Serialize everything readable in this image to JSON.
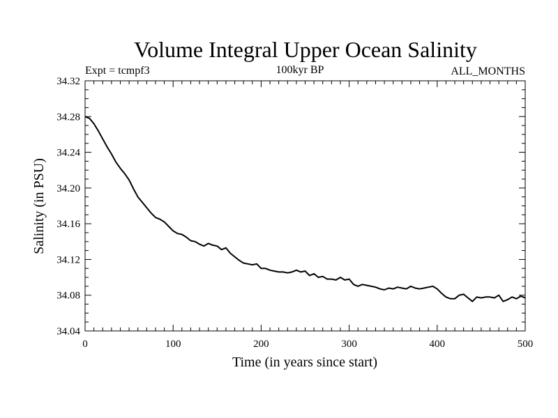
{
  "chart_data": {
    "type": "line",
    "title": "Volume Integral Upper Ocean Salinity",
    "subtitle_left": "Expt = tcmpf3",
    "subtitle_center": "100kyr BP",
    "subtitle_right": "ALL_MONTHS",
    "xlabel": "Time (in years since start)",
    "ylabel": "Salinity (in PSU)",
    "xlim": [
      0,
      500
    ],
    "ylim": [
      34.04,
      34.32
    ],
    "xticks": [
      0,
      100,
      200,
      300,
      400,
      500
    ],
    "xtick_labels": [
      "0",
      "100",
      "200",
      "300",
      "400",
      "500"
    ],
    "yticks": [
      34.04,
      34.08,
      34.12,
      34.16,
      34.2,
      34.24,
      34.28,
      34.32
    ],
    "ytick_labels": [
      "34.04",
      "34.08",
      "34.12",
      "34.16",
      "34.20",
      "34.24",
      "34.28",
      "34.32"
    ],
    "grid": false,
    "line_color": "#000000",
    "series": [
      {
        "name": "Salinity",
        "x": [
          0,
          5,
          10,
          15,
          20,
          25,
          30,
          35,
          40,
          45,
          50,
          55,
          60,
          65,
          70,
          75,
          80,
          85,
          90,
          95,
          100,
          105,
          110,
          115,
          120,
          125,
          130,
          135,
          140,
          145,
          150,
          155,
          160,
          165,
          170,
          175,
          180,
          185,
          190,
          195,
          200,
          205,
          210,
          215,
          220,
          225,
          230,
          235,
          240,
          245,
          250,
          255,
          260,
          265,
          270,
          275,
          280,
          285,
          290,
          295,
          300,
          305,
          310,
          315,
          320,
          325,
          330,
          335,
          340,
          345,
          350,
          355,
          360,
          365,
          370,
          375,
          380,
          385,
          390,
          395,
          400,
          405,
          410,
          415,
          420,
          425,
          430,
          435,
          440,
          445,
          450,
          455,
          460,
          465,
          470,
          475,
          480,
          485,
          490,
          495,
          500
        ],
        "values": [
          34.28,
          34.278,
          34.272,
          34.264,
          34.255,
          34.246,
          34.238,
          34.229,
          34.222,
          34.216,
          34.209,
          34.199,
          34.19,
          34.184,
          34.178,
          34.172,
          34.167,
          34.165,
          34.162,
          34.157,
          34.152,
          34.149,
          34.148,
          34.145,
          34.141,
          34.14,
          34.137,
          34.135,
          34.138,
          34.136,
          34.135,
          34.131,
          34.133,
          34.127,
          34.123,
          34.119,
          34.116,
          34.115,
          34.114,
          34.115,
          34.11,
          34.11,
          34.108,
          34.107,
          34.106,
          34.106,
          34.105,
          34.106,
          34.108,
          34.106,
          34.107,
          34.102,
          34.104,
          34.1,
          34.101,
          34.098,
          34.098,
          34.097,
          34.1,
          34.097,
          34.098,
          34.092,
          34.09,
          34.092,
          34.091,
          34.09,
          34.089,
          34.087,
          34.086,
          34.088,
          34.087,
          34.089,
          34.088,
          34.087,
          34.09,
          34.088,
          34.087,
          34.088,
          34.089,
          34.09,
          34.087,
          34.082,
          34.078,
          34.076,
          34.076,
          34.08,
          34.081,
          34.077,
          34.073,
          34.078,
          34.077,
          34.078,
          34.078,
          34.077,
          34.08,
          34.073,
          34.075,
          34.078,
          34.076,
          34.079,
          34.077
        ]
      }
    ]
  }
}
